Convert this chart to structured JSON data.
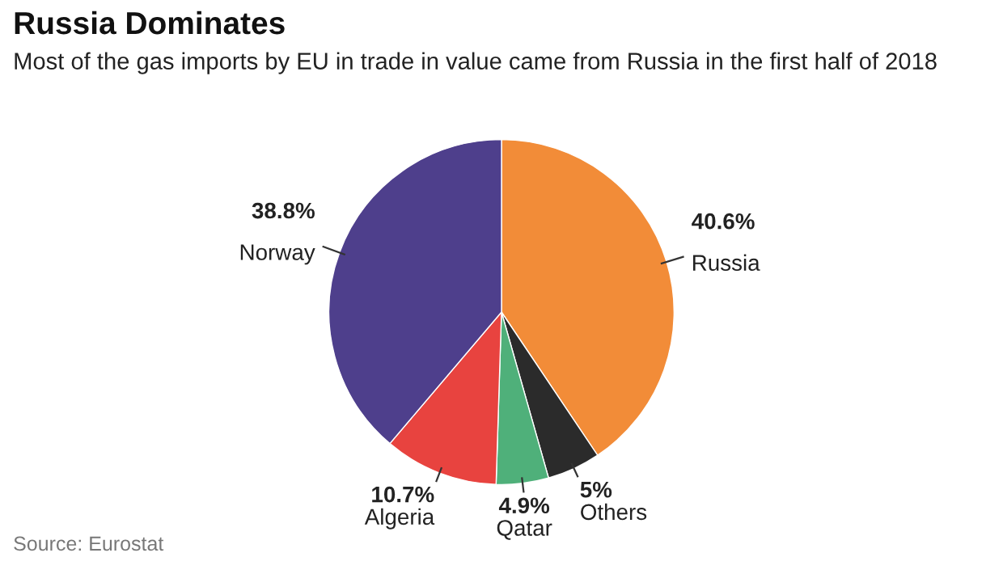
{
  "chart_data": {
    "type": "pie",
    "title": "Russia Dominates",
    "subtitle": "Most of the gas imports by EU in trade in value came from Russia in the first half of 2018",
    "categories": [
      "Russia",
      "Others",
      "Qatar",
      "Algeria",
      "Norway"
    ],
    "values": [
      40.6,
      5,
      4.9,
      10.7,
      38.8
    ],
    "colors": [
      "#f28c38",
      "#2b2b2b",
      "#4fb07a",
      "#e8433f",
      "#4e3f8c"
    ],
    "value_labels": [
      "40.6%",
      "5%",
      "4.9%",
      "10.7%",
      "38.8%"
    ],
    "annotations": [
      "Source: Eurostat"
    ]
  }
}
